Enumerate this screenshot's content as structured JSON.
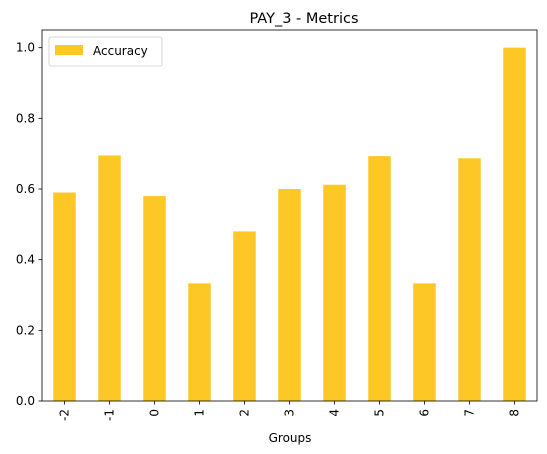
{
  "chart_data": {
    "type": "bar",
    "title": "PAY_3 - Metrics",
    "xlabel": "Groups",
    "ylabel": "",
    "categories": [
      "-2",
      "-1",
      "0",
      "1",
      "2",
      "3",
      "4",
      "5",
      "6",
      "7",
      "8"
    ],
    "series": [
      {
        "name": "Accuracy",
        "color": "#fdc726",
        "values": [
          0.59,
          0.695,
          0.58,
          0.333,
          0.48,
          0.6,
          0.612,
          0.693,
          0.333,
          0.687,
          1.0
        ]
      }
    ],
    "ylim": [
      0,
      1.05
    ],
    "yticks": [
      "0.0",
      "0.2",
      "0.4",
      "0.6",
      "0.8",
      "1.0"
    ],
    "legend_position": "top-left",
    "grid": false
  }
}
